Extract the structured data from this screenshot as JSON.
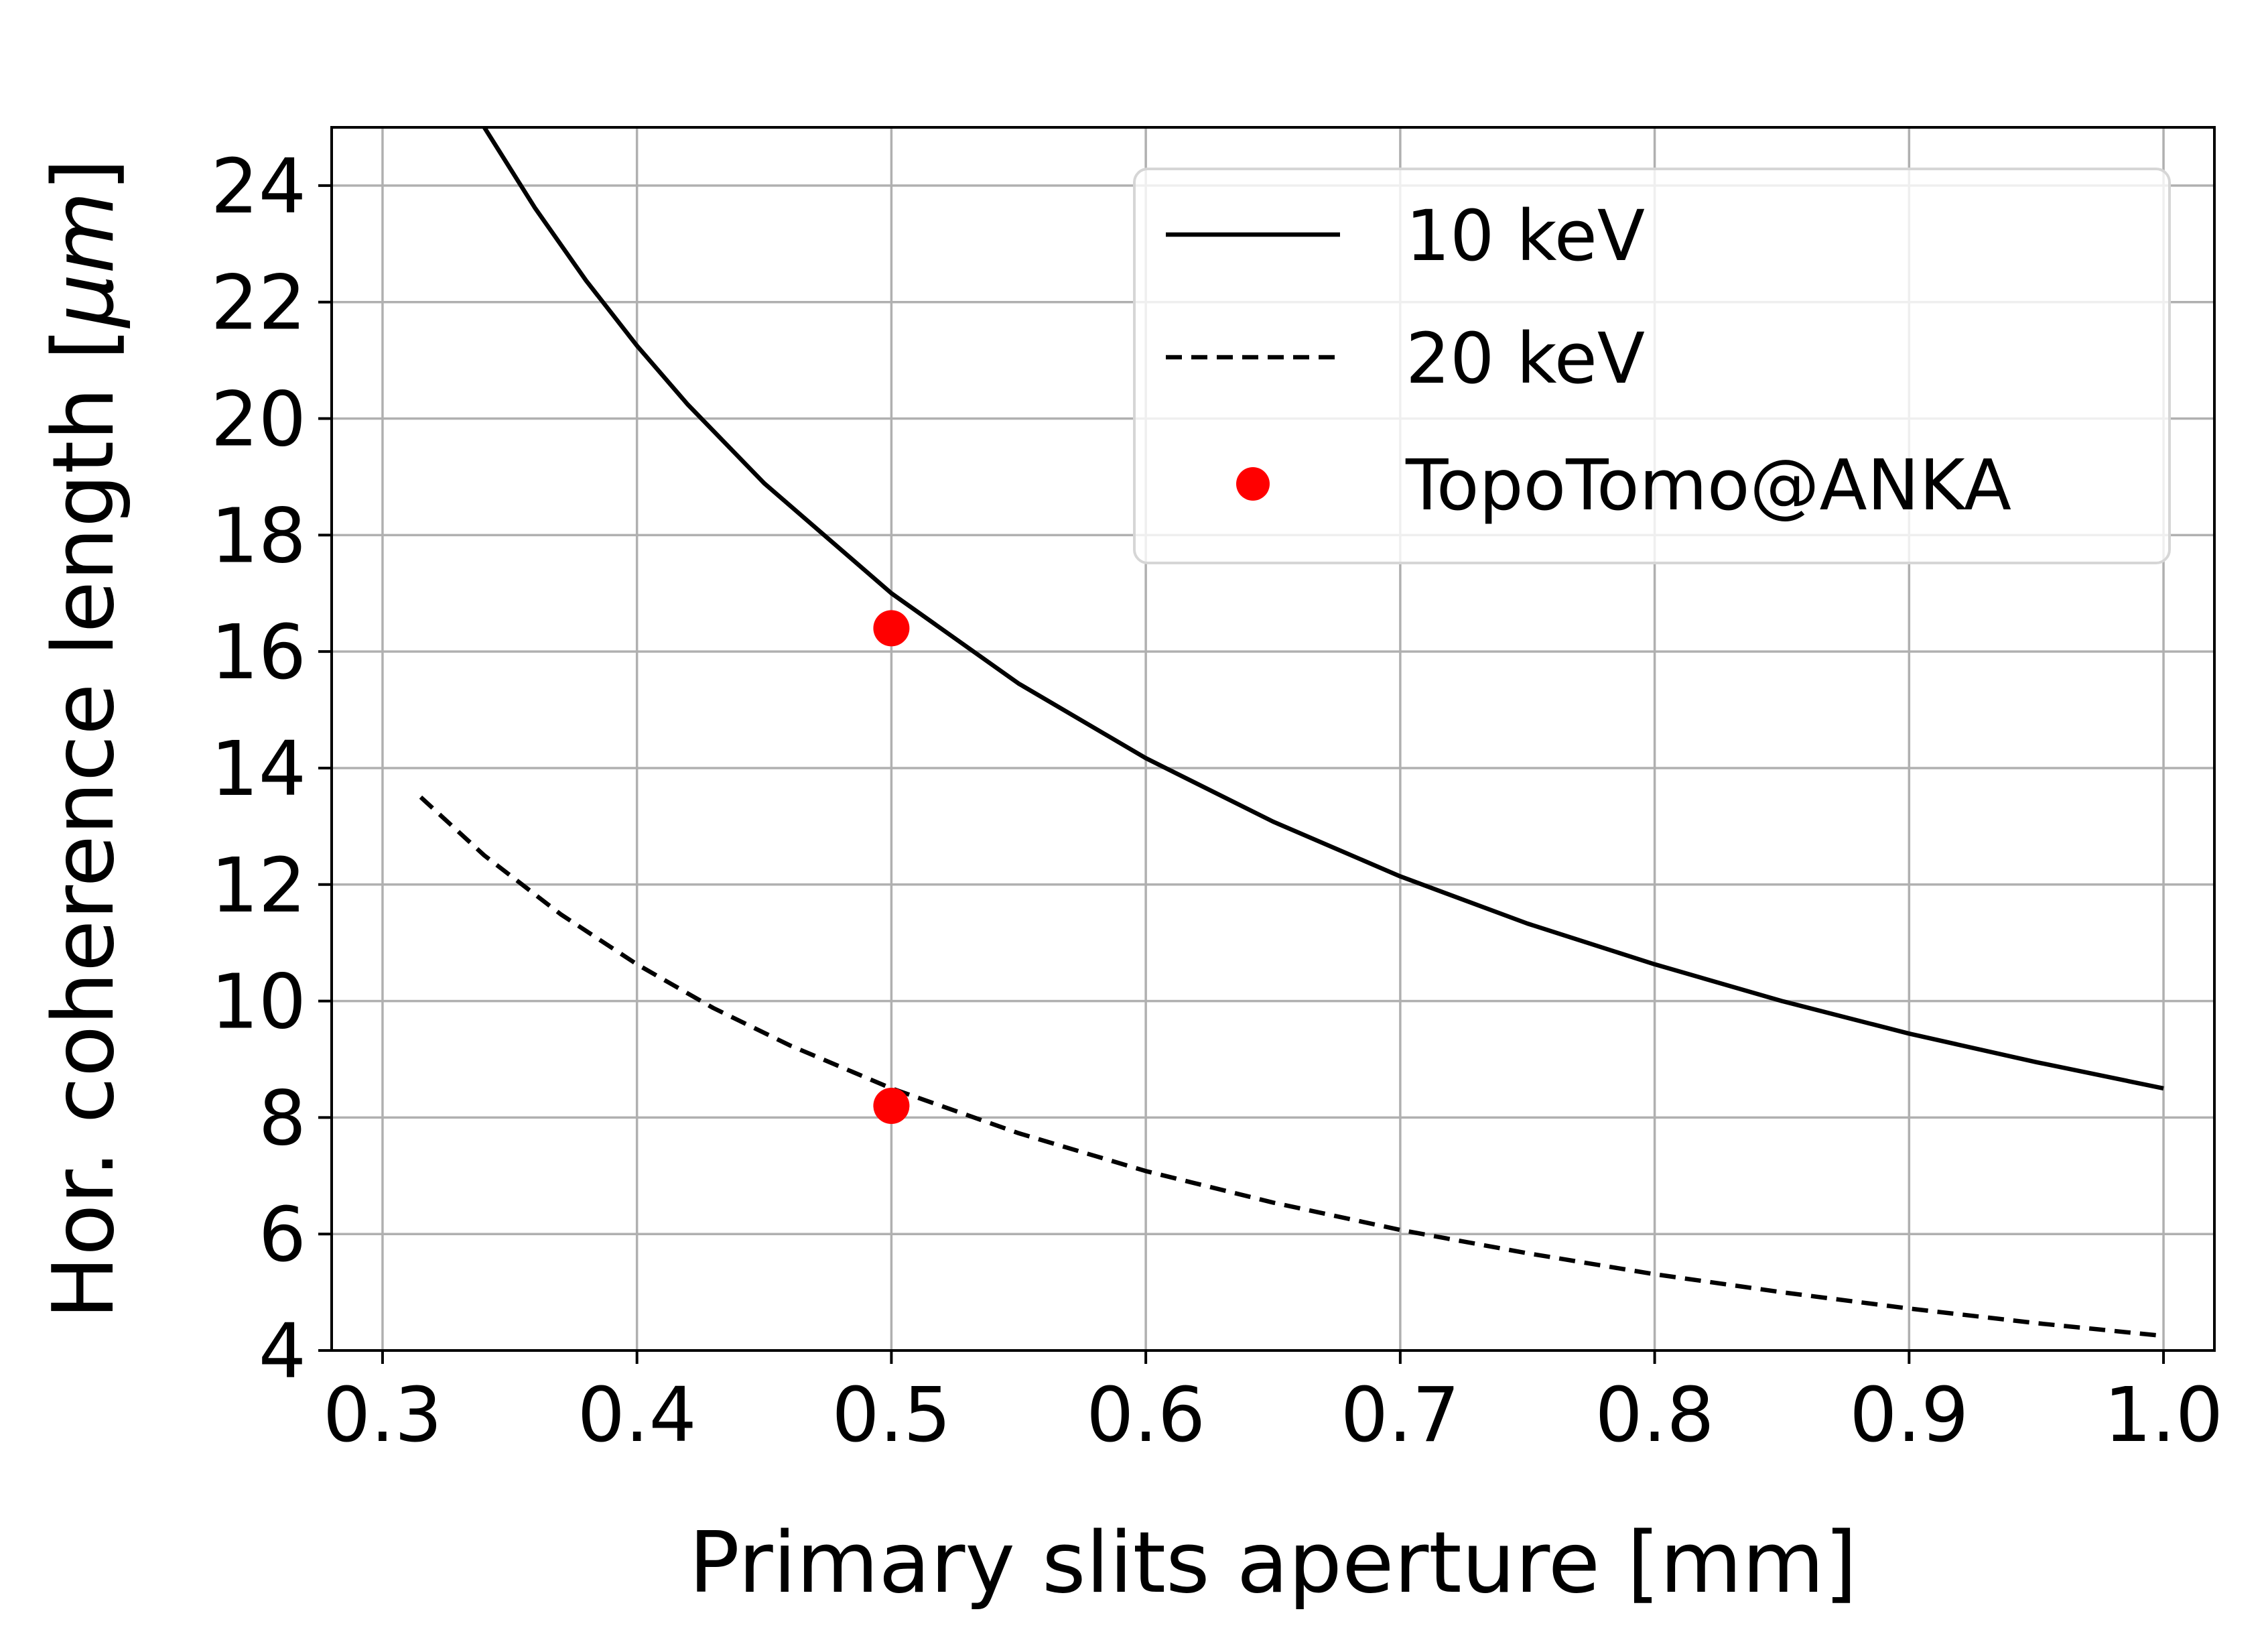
{
  "chart_data": {
    "type": "line",
    "title": "",
    "xlabel": "Primary slits aperture [mm]",
    "ylabel_prefix": "Hor. coherence length [",
    "ylabel_unit": "µm",
    "ylabel_suffix": "]",
    "xlim": [
      0.28,
      1.02
    ],
    "ylim": [
      4,
      25
    ],
    "x_ticks": [
      0.3,
      0.4,
      0.5,
      0.6,
      0.7,
      0.8,
      0.9,
      1.0
    ],
    "x_tick_labels": [
      "0.3",
      "0.4",
      "0.5",
      "0.6",
      "0.7",
      "0.8",
      "0.9",
      "1.0"
    ],
    "y_ticks": [
      4,
      6,
      8,
      10,
      12,
      14,
      16,
      18,
      20,
      22,
      24
    ],
    "y_tick_labels": [
      "4",
      "6",
      "8",
      "10",
      "12",
      "14",
      "16",
      "18",
      "20",
      "22",
      "24"
    ],
    "grid": true,
    "legend_position": "top-right",
    "series": [
      {
        "name": "10 keV",
        "style": "solid",
        "color": "#000000",
        "x": [
          0.34,
          0.36,
          0.38,
          0.4,
          0.42,
          0.45,
          0.5,
          0.55,
          0.6,
          0.65,
          0.7,
          0.75,
          0.8,
          0.85,
          0.9,
          0.95,
          1.0
        ],
        "y": [
          25.0,
          23.61,
          22.37,
          21.25,
          20.24,
          18.89,
          17.0,
          15.45,
          14.17,
          13.08,
          12.14,
          11.33,
          10.63,
          10.0,
          9.44,
          8.95,
          8.5
        ]
      },
      {
        "name": "20 keV",
        "style": "dashed",
        "color": "#000000",
        "x": [
          0.315,
          0.34,
          0.37,
          0.4,
          0.43,
          0.46,
          0.5,
          0.55,
          0.6,
          0.65,
          0.7,
          0.75,
          0.8,
          0.85,
          0.9,
          0.95,
          1.0
        ],
        "y": [
          13.5,
          12.5,
          11.49,
          10.63,
          9.88,
          9.24,
          8.5,
          7.73,
          7.08,
          6.54,
          6.07,
          5.67,
          5.31,
          5.0,
          4.72,
          4.47,
          4.25
        ]
      },
      {
        "name": "TopoTomo@ANKA",
        "style": "markers",
        "color": "#ff0000",
        "x": [
          0.5,
          0.5
        ],
        "y": [
          16.4,
          8.2
        ]
      }
    ]
  }
}
